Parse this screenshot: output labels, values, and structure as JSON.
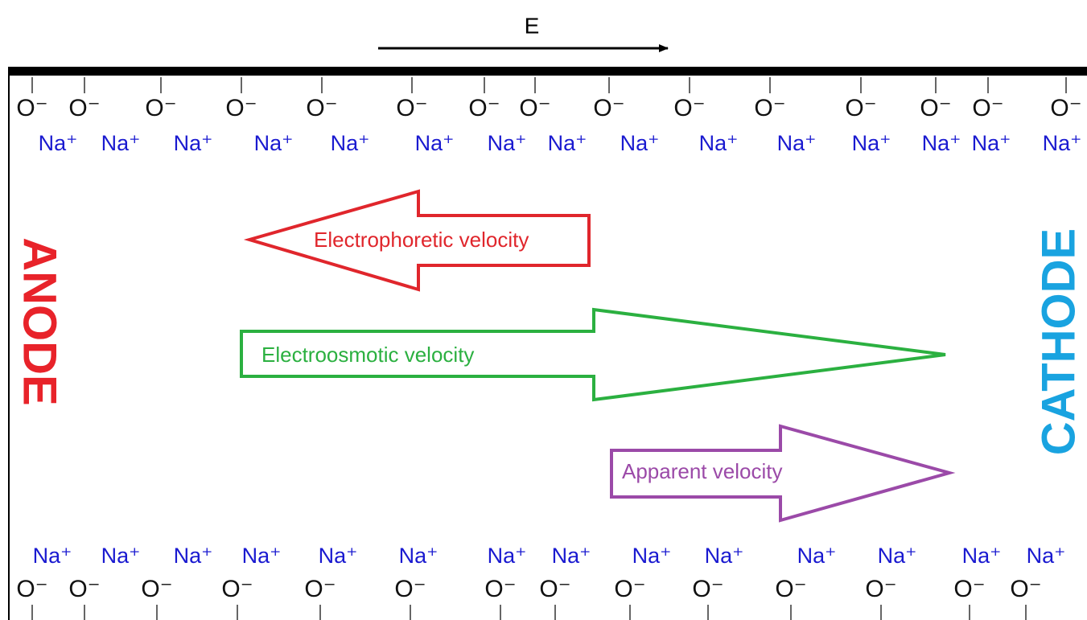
{
  "field": {
    "label": "E"
  },
  "electrodes": {
    "anode": "ANODE",
    "cathode": "CATHODE"
  },
  "arrows": {
    "electrophoretic": "Electrophoretic velocity",
    "electroosmotic": "Electroosmotic velocity",
    "apparent": "Apparent velocity"
  },
  "top_wall": {
    "anions": [
      "O⁻",
      "O⁻",
      "O⁻",
      "O⁻",
      "O⁻",
      "O⁻",
      "O⁻",
      "O⁻",
      "O⁻",
      "O⁻",
      "O⁻",
      "O⁻",
      "O⁻",
      "O⁻",
      "O⁻"
    ],
    "cations": [
      "Na⁺",
      "Na⁺",
      "Na⁺",
      "Na⁺",
      "Na⁺",
      "Na⁺",
      "Na⁺",
      "Na⁺",
      "Na⁺",
      "Na⁺",
      "Na⁺",
      "Na⁺",
      "Na⁺",
      "Na⁺",
      "Na⁺"
    ]
  },
  "bottom_wall": {
    "cations": [
      "Na⁺",
      "Na⁺",
      "Na⁺",
      "Na⁺",
      "Na⁺",
      "Na⁺",
      "Na⁺",
      "Na⁺",
      "Na⁺",
      "Na⁺",
      "Na⁺",
      "Na⁺",
      "Na⁺",
      "Na⁺"
    ],
    "anions": [
      "O⁻",
      "O⁻",
      "O⁻",
      "O⁻",
      "O⁻",
      "O⁻",
      "O⁻",
      "O⁻",
      "O⁻",
      "O⁻",
      "O⁻",
      "O⁻",
      "O⁻",
      "O⁻"
    ]
  }
}
